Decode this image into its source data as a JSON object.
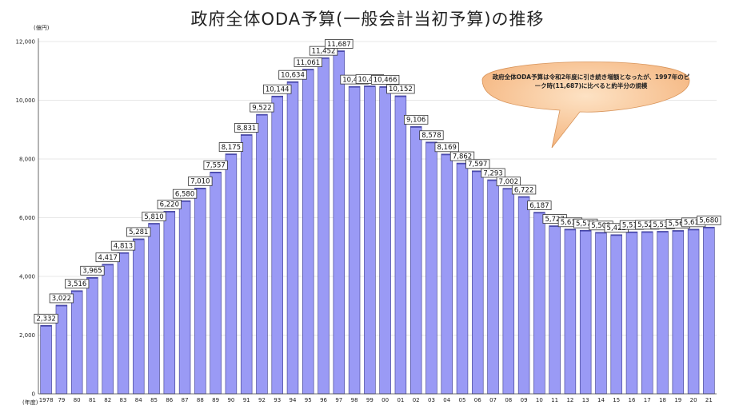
{
  "chart_data": {
    "type": "bar",
    "title": "政府全体ODA予算(一般会計当初予算)の推移",
    "ylabel": "(億円)",
    "xlabel": "(年度)",
    "ylim": [
      0,
      12000
    ],
    "yticks": [
      "0",
      "2,000",
      "4,000",
      "6,000",
      "8,000",
      "10,000",
      "12,000"
    ],
    "grid": true,
    "categories": [
      "1978",
      "79",
      "80",
      "81",
      "82",
      "83",
      "84",
      "85",
      "86",
      "87",
      "88",
      "89",
      "90",
      "91",
      "92",
      "93",
      "94",
      "95",
      "96",
      "97",
      "98",
      "99",
      "00",
      "01",
      "02",
      "03",
      "04",
      "05",
      "06",
      "07",
      "08",
      "09",
      "10",
      "11",
      "12",
      "13",
      "14",
      "15",
      "16",
      "17",
      "18",
      "19",
      "20",
      "21"
    ],
    "values": [
      2332,
      3022,
      3516,
      3965,
      4417,
      4813,
      5281,
      5810,
      6220,
      6580,
      7010,
      7557,
      8175,
      8831,
      9522,
      10144,
      10634,
      11061,
      11452,
      11687,
      10473,
      10489,
      10466,
      10152,
      9106,
      8578,
      8169,
      7862,
      7597,
      7293,
      7002,
      6722,
      6187,
      5727,
      5612,
      5573,
      5502,
      5422,
      5519,
      5527,
      5538,
      5566,
      5610,
      5680
    ],
    "data_labels": [
      "2,332",
      "3,022",
      "3,516",
      "3,965",
      "4,417",
      "4,813",
      "5,281",
      "5,810",
      "6,220",
      "6,580",
      "7,010",
      "7,557",
      "8,175",
      "8,831",
      "9,522",
      "10,144",
      "10,634",
      "11,061",
      "11,452",
      "11,687",
      "10,473",
      "10,489",
      "10,466",
      "10,152",
      "9,106",
      "8,578",
      "8,169",
      "7,862",
      "7,597",
      "7,293",
      "7,002",
      "6,722",
      "6,187",
      "5,727",
      "5,612",
      "5,573",
      "5,502",
      "5,422",
      "5,519",
      "5,527",
      "5,538",
      "5,566",
      "5,610",
      "5,680"
    ],
    "annotation": "政府全体ODA予算は令和2年度に引き続き増額となったが、1997年のピーク時(11,687)に比べると約半分の規模"
  },
  "colors": {
    "bar": "#9a9af5",
    "bar_edge": "#3a3a8a",
    "callout": "#f8c89a"
  }
}
